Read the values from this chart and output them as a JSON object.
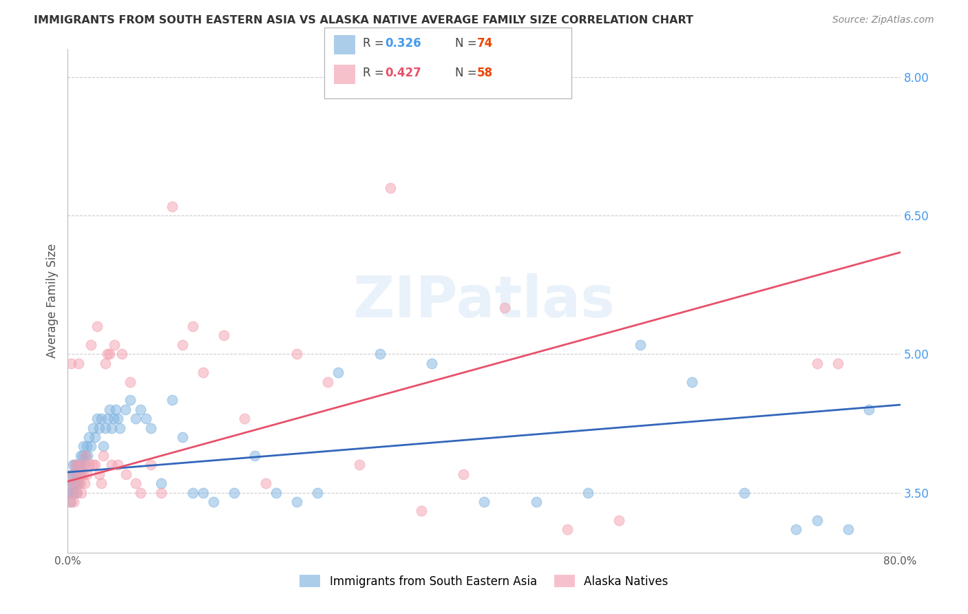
{
  "title": "IMMIGRANTS FROM SOUTH EASTERN ASIA VS ALASKA NATIVE AVERAGE FAMILY SIZE CORRELATION CHART",
  "source": "Source: ZipAtlas.com",
  "ylabel": "Average Family Size",
  "xlim": [
    0.0,
    0.8
  ],
  "ylim": [
    2.85,
    8.3
  ],
  "yticks": [
    3.5,
    5.0,
    6.5,
    8.0
  ],
  "xticks": [
    0.0,
    0.1,
    0.2,
    0.3,
    0.4,
    0.5,
    0.6,
    0.7,
    0.8
  ],
  "xtick_labels": [
    "0.0%",
    "",
    "",
    "",
    "",
    "",
    "",
    "",
    "80.0%"
  ],
  "series1_label": "Immigrants from South Eastern Asia",
  "series2_label": "Alaska Natives",
  "series1_color": "#7EB3E0",
  "series2_color": "#F4A0B0",
  "line1_color": "#3366BB",
  "line2_color": "#E8506A",
  "watermark": "ZIPatlas",
  "background_color": "#ffffff",
  "grid_color": "#cccccc",
  "series1_x": [
    0.002,
    0.003,
    0.003,
    0.004,
    0.004,
    0.005,
    0.005,
    0.006,
    0.006,
    0.007,
    0.007,
    0.008,
    0.008,
    0.009,
    0.009,
    0.01,
    0.01,
    0.011,
    0.011,
    0.012,
    0.012,
    0.013,
    0.014,
    0.015,
    0.016,
    0.017,
    0.018,
    0.019,
    0.02,
    0.022,
    0.024,
    0.026,
    0.028,
    0.03,
    0.032,
    0.034,
    0.036,
    0.038,
    0.04,
    0.042,
    0.044,
    0.046,
    0.048,
    0.05,
    0.055,
    0.06,
    0.065,
    0.07,
    0.075,
    0.08,
    0.09,
    0.1,
    0.11,
    0.12,
    0.13,
    0.14,
    0.16,
    0.18,
    0.2,
    0.22,
    0.24,
    0.26,
    0.3,
    0.35,
    0.4,
    0.45,
    0.5,
    0.55,
    0.6,
    0.65,
    0.7,
    0.72,
    0.75,
    0.77
  ],
  "series1_y": [
    3.5,
    3.6,
    3.4,
    3.7,
    3.5,
    3.8,
    3.6,
    3.7,
    3.5,
    3.6,
    3.8,
    3.7,
    3.5,
    3.6,
    3.8,
    3.7,
    3.6,
    3.8,
    3.7,
    3.9,
    3.8,
    3.7,
    3.9,
    4.0,
    3.8,
    3.9,
    4.0,
    3.9,
    4.1,
    4.0,
    4.2,
    4.1,
    4.3,
    4.2,
    4.3,
    4.0,
    4.2,
    4.3,
    4.4,
    4.2,
    4.3,
    4.4,
    4.3,
    4.2,
    4.4,
    4.5,
    4.3,
    4.4,
    4.3,
    4.2,
    3.6,
    4.5,
    4.1,
    3.5,
    3.5,
    3.4,
    3.5,
    3.9,
    3.5,
    3.4,
    3.5,
    4.8,
    5.0,
    4.9,
    3.4,
    3.4,
    3.5,
    5.1,
    4.7,
    3.5,
    3.1,
    3.2,
    3.1,
    4.4
  ],
  "series2_x": [
    0.002,
    0.003,
    0.003,
    0.004,
    0.005,
    0.006,
    0.007,
    0.008,
    0.009,
    0.01,
    0.01,
    0.011,
    0.012,
    0.013,
    0.014,
    0.015,
    0.016,
    0.017,
    0.018,
    0.02,
    0.022,
    0.024,
    0.026,
    0.028,
    0.03,
    0.032,
    0.034,
    0.036,
    0.038,
    0.04,
    0.042,
    0.045,
    0.048,
    0.052,
    0.056,
    0.06,
    0.065,
    0.07,
    0.08,
    0.09,
    0.1,
    0.11,
    0.12,
    0.13,
    0.15,
    0.17,
    0.19,
    0.22,
    0.25,
    0.28,
    0.31,
    0.34,
    0.38,
    0.42,
    0.48,
    0.53,
    0.72,
    0.74
  ],
  "series2_y": [
    3.4,
    3.6,
    4.9,
    3.5,
    3.7,
    3.4,
    3.8,
    3.6,
    3.5,
    3.8,
    4.9,
    3.7,
    3.6,
    3.5,
    3.8,
    3.7,
    3.6,
    3.9,
    3.7,
    3.8,
    5.1,
    3.8,
    3.8,
    5.3,
    3.7,
    3.6,
    3.9,
    4.9,
    5.0,
    5.0,
    3.8,
    5.1,
    3.8,
    5.0,
    3.7,
    4.7,
    3.6,
    3.5,
    3.8,
    3.5,
    6.6,
    5.1,
    5.3,
    4.8,
    5.2,
    4.3,
    3.6,
    5.0,
    4.7,
    3.8,
    6.8,
    3.3,
    3.7,
    5.5,
    3.1,
    3.2,
    4.9,
    4.9
  ],
  "line1_x0": 0.0,
  "line1_y0": 3.72,
  "line1_x1": 0.8,
  "line1_y1": 4.45,
  "line2_x0": 0.0,
  "line2_y0": 3.62,
  "line2_x1": 0.8,
  "line2_y1": 6.1
}
